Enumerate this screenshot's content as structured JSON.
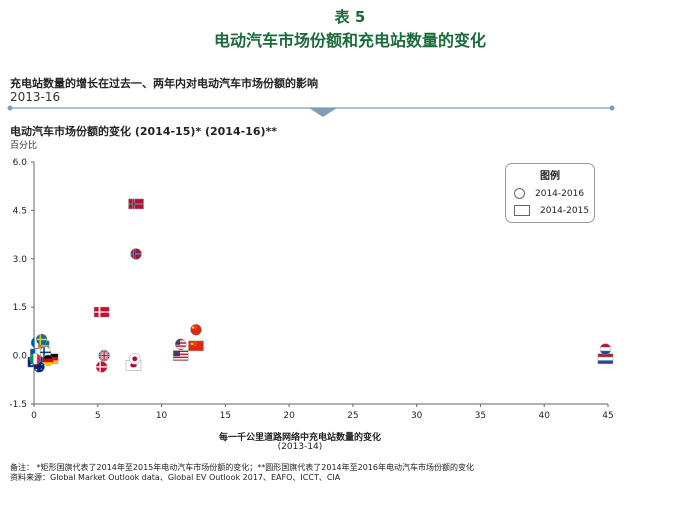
{
  "header": {
    "figure_number": "表 5",
    "title": "电动汽车市场份额和充电站数量的变化",
    "subtitle": "充电站数量的增长在过去一、两年内对电动汽车市场份额的影响",
    "period": "2013-16"
  },
  "chart_data": {
    "type": "scatter",
    "title": "电动汽车市场份额的变化 (2014-15)* (2014-16)**",
    "ylabel": "百分比",
    "xlabel": "每一千公里道路网络中充电站数量的变化",
    "xlabel_sub": "(2013-14)",
    "xlim": [
      0,
      45
    ],
    "ylim": [
      -1.5,
      6.0
    ],
    "xticks": [
      0,
      5,
      10,
      15,
      20,
      25,
      30,
      35,
      40,
      45
    ],
    "yticks": [
      6.0,
      4.5,
      3.0,
      1.5,
      0.0,
      -1.5
    ],
    "ytick_labels": [
      "6.0",
      "4.5",
      "3.0",
      "1.5",
      "0.0",
      "-1.5"
    ],
    "legend": {
      "title": "图例",
      "placement": "top-right",
      "entries": [
        "2014-2016",
        "2014-2015"
      ]
    },
    "series": [
      {
        "name": "2014-2016",
        "marker": "circle",
        "points": [
          {
            "country": "Norway",
            "x": 8.0,
            "y": 3.15
          },
          {
            "country": "China",
            "x": 12.7,
            "y": 0.8
          },
          {
            "country": "United States",
            "x": 11.5,
            "y": 0.35
          },
          {
            "country": "United Kingdom",
            "x": 5.5,
            "y": 0.0
          },
          {
            "country": "Japan",
            "x": 7.9,
            "y": -0.1
          },
          {
            "country": "Denmark",
            "x": 5.3,
            "y": -0.35
          },
          {
            "country": "Netherlands",
            "x": 44.8,
            "y": 0.2
          },
          {
            "country": "France",
            "x": 0.2,
            "y": 0.4
          },
          {
            "country": "Sweden",
            "x": 0.6,
            "y": 0.5
          },
          {
            "country": "Finland",
            "x": 0.9,
            "y": 0.1
          },
          {
            "country": "Germany",
            "x": 1.1,
            "y": -0.15
          },
          {
            "country": "Australia",
            "x": 0.4,
            "y": -0.35
          },
          {
            "country": "Italy",
            "x": 0.1,
            "y": -0.1
          }
        ]
      },
      {
        "name": "2014-2015",
        "marker": "square",
        "points": [
          {
            "country": "Norway",
            "x": 8.0,
            "y": 4.7
          },
          {
            "country": "Denmark",
            "x": 5.3,
            "y": 1.35
          },
          {
            "country": "China",
            "x": 12.7,
            "y": 0.3
          },
          {
            "country": "United States",
            "x": 11.5,
            "y": 0.0
          },
          {
            "country": "Japan",
            "x": 7.8,
            "y": -0.3
          },
          {
            "country": "Netherlands",
            "x": 44.8,
            "y": -0.1
          },
          {
            "country": "Sweden",
            "x": 0.6,
            "y": 0.3
          },
          {
            "country": "Germany",
            "x": 1.3,
            "y": -0.1
          },
          {
            "country": "France",
            "x": 0.3,
            "y": 0.05
          },
          {
            "country": "Australia",
            "x": 0.1,
            "y": -0.2
          }
        ]
      }
    ]
  },
  "footer": {
    "note": "备注：     *矩形国旗代表了2014年至2015年电动汽车市场份额的变化；**圆形国旗代表了2014年至2016年电动汽车市场份额的变化",
    "source": "资料来源：Global Market Outlook data、Global EV Outlook 2017、EAFO、ICCT、CIA"
  },
  "colors": {
    "title_green": "#1a6b3c",
    "divider_blue": "#7f9db5"
  }
}
